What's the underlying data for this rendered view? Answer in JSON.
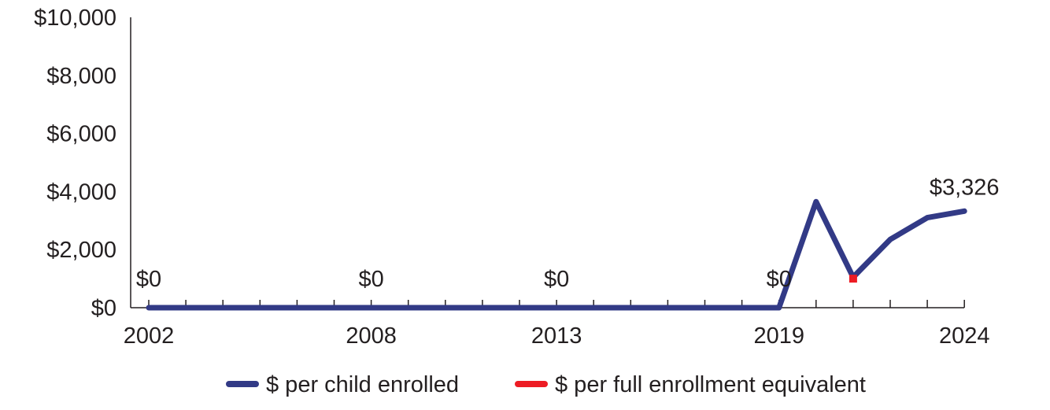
{
  "chart_data": {
    "type": "line",
    "title": "",
    "xlabel": "",
    "ylabel": "",
    "x": [
      2002,
      2003,
      2004,
      2005,
      2006,
      2007,
      2008,
      2009,
      2010,
      2011,
      2012,
      2013,
      2014,
      2015,
      2016,
      2017,
      2018,
      2019,
      2020,
      2021,
      2022,
      2023,
      2024
    ],
    "x_tick_labels": [
      "2002",
      "2008",
      "2013",
      "2019",
      "2024"
    ],
    "ylim": [
      0,
      10000
    ],
    "y_ticks": [
      0,
      2000,
      4000,
      6000,
      8000,
      10000
    ],
    "y_tick_labels": [
      "$0",
      "$2,000",
      "$4,000",
      "$6,000",
      "$8,000",
      "$10,000"
    ],
    "grid": false,
    "legend_position": "bottom",
    "colors": {
      "series1": "#323a86",
      "series2": "#ed1c24",
      "axis": "#231f20"
    },
    "series": [
      {
        "name": "$ per child enrolled",
        "values": [
          0,
          0,
          0,
          0,
          0,
          0,
          0,
          0,
          0,
          0,
          0,
          0,
          0,
          0,
          0,
          0,
          0,
          0,
          3650,
          1050,
          2350,
          3100,
          3326
        ]
      },
      {
        "name": "$ per full enrollment equivalent",
        "x": [
          2021
        ],
        "values": [
          1000
        ]
      }
    ],
    "data_labels": [
      {
        "x": 2002,
        "text": "$0"
      },
      {
        "x": 2008,
        "text": "$0"
      },
      {
        "x": 2013,
        "text": "$0"
      },
      {
        "x": 2019,
        "text": "$0"
      },
      {
        "x": 2024,
        "text": "$3,326"
      }
    ]
  }
}
